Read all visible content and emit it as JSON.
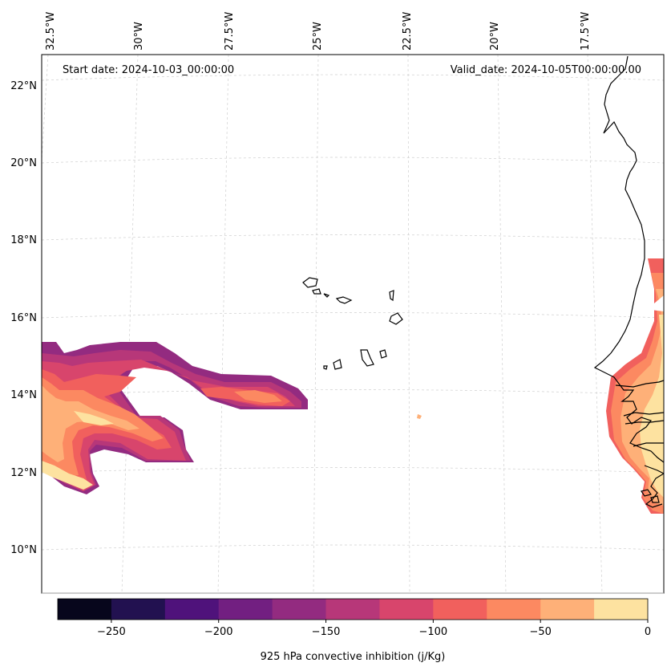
{
  "header": {
    "start_date": "Start date: 2024-10-03_00:00:00",
    "valid_date": "Valid_date: 2024-10-05T00:00:00.00"
  },
  "grid": {
    "lon_labels": [
      "32.5°W",
      "30°W",
      "27.5°W",
      "25°W",
      "22.5°W",
      "20°W",
      "17.5°W"
    ],
    "lat_labels": [
      "22°N",
      "20°N",
      "18°N",
      "16°N",
      "14°N",
      "12°N",
      "10°N"
    ]
  },
  "colorbar": {
    "label": "925 hPa convective inhibition (j/Kg)",
    "ticks": [
      "−250",
      "−200",
      "−150",
      "−100",
      "−50",
      "0"
    ],
    "tick_values": [
      -250,
      -200,
      -150,
      -100,
      -50,
      0
    ],
    "range": [
      -275,
      0
    ],
    "colors": [
      "#07061c",
      "#221150",
      "#4f127b",
      "#721f81",
      "#932b80",
      "#b73779",
      "#d8456c",
      "#f1605d",
      "#fc8961",
      "#feb078",
      "#fde2a0"
    ]
  }
}
